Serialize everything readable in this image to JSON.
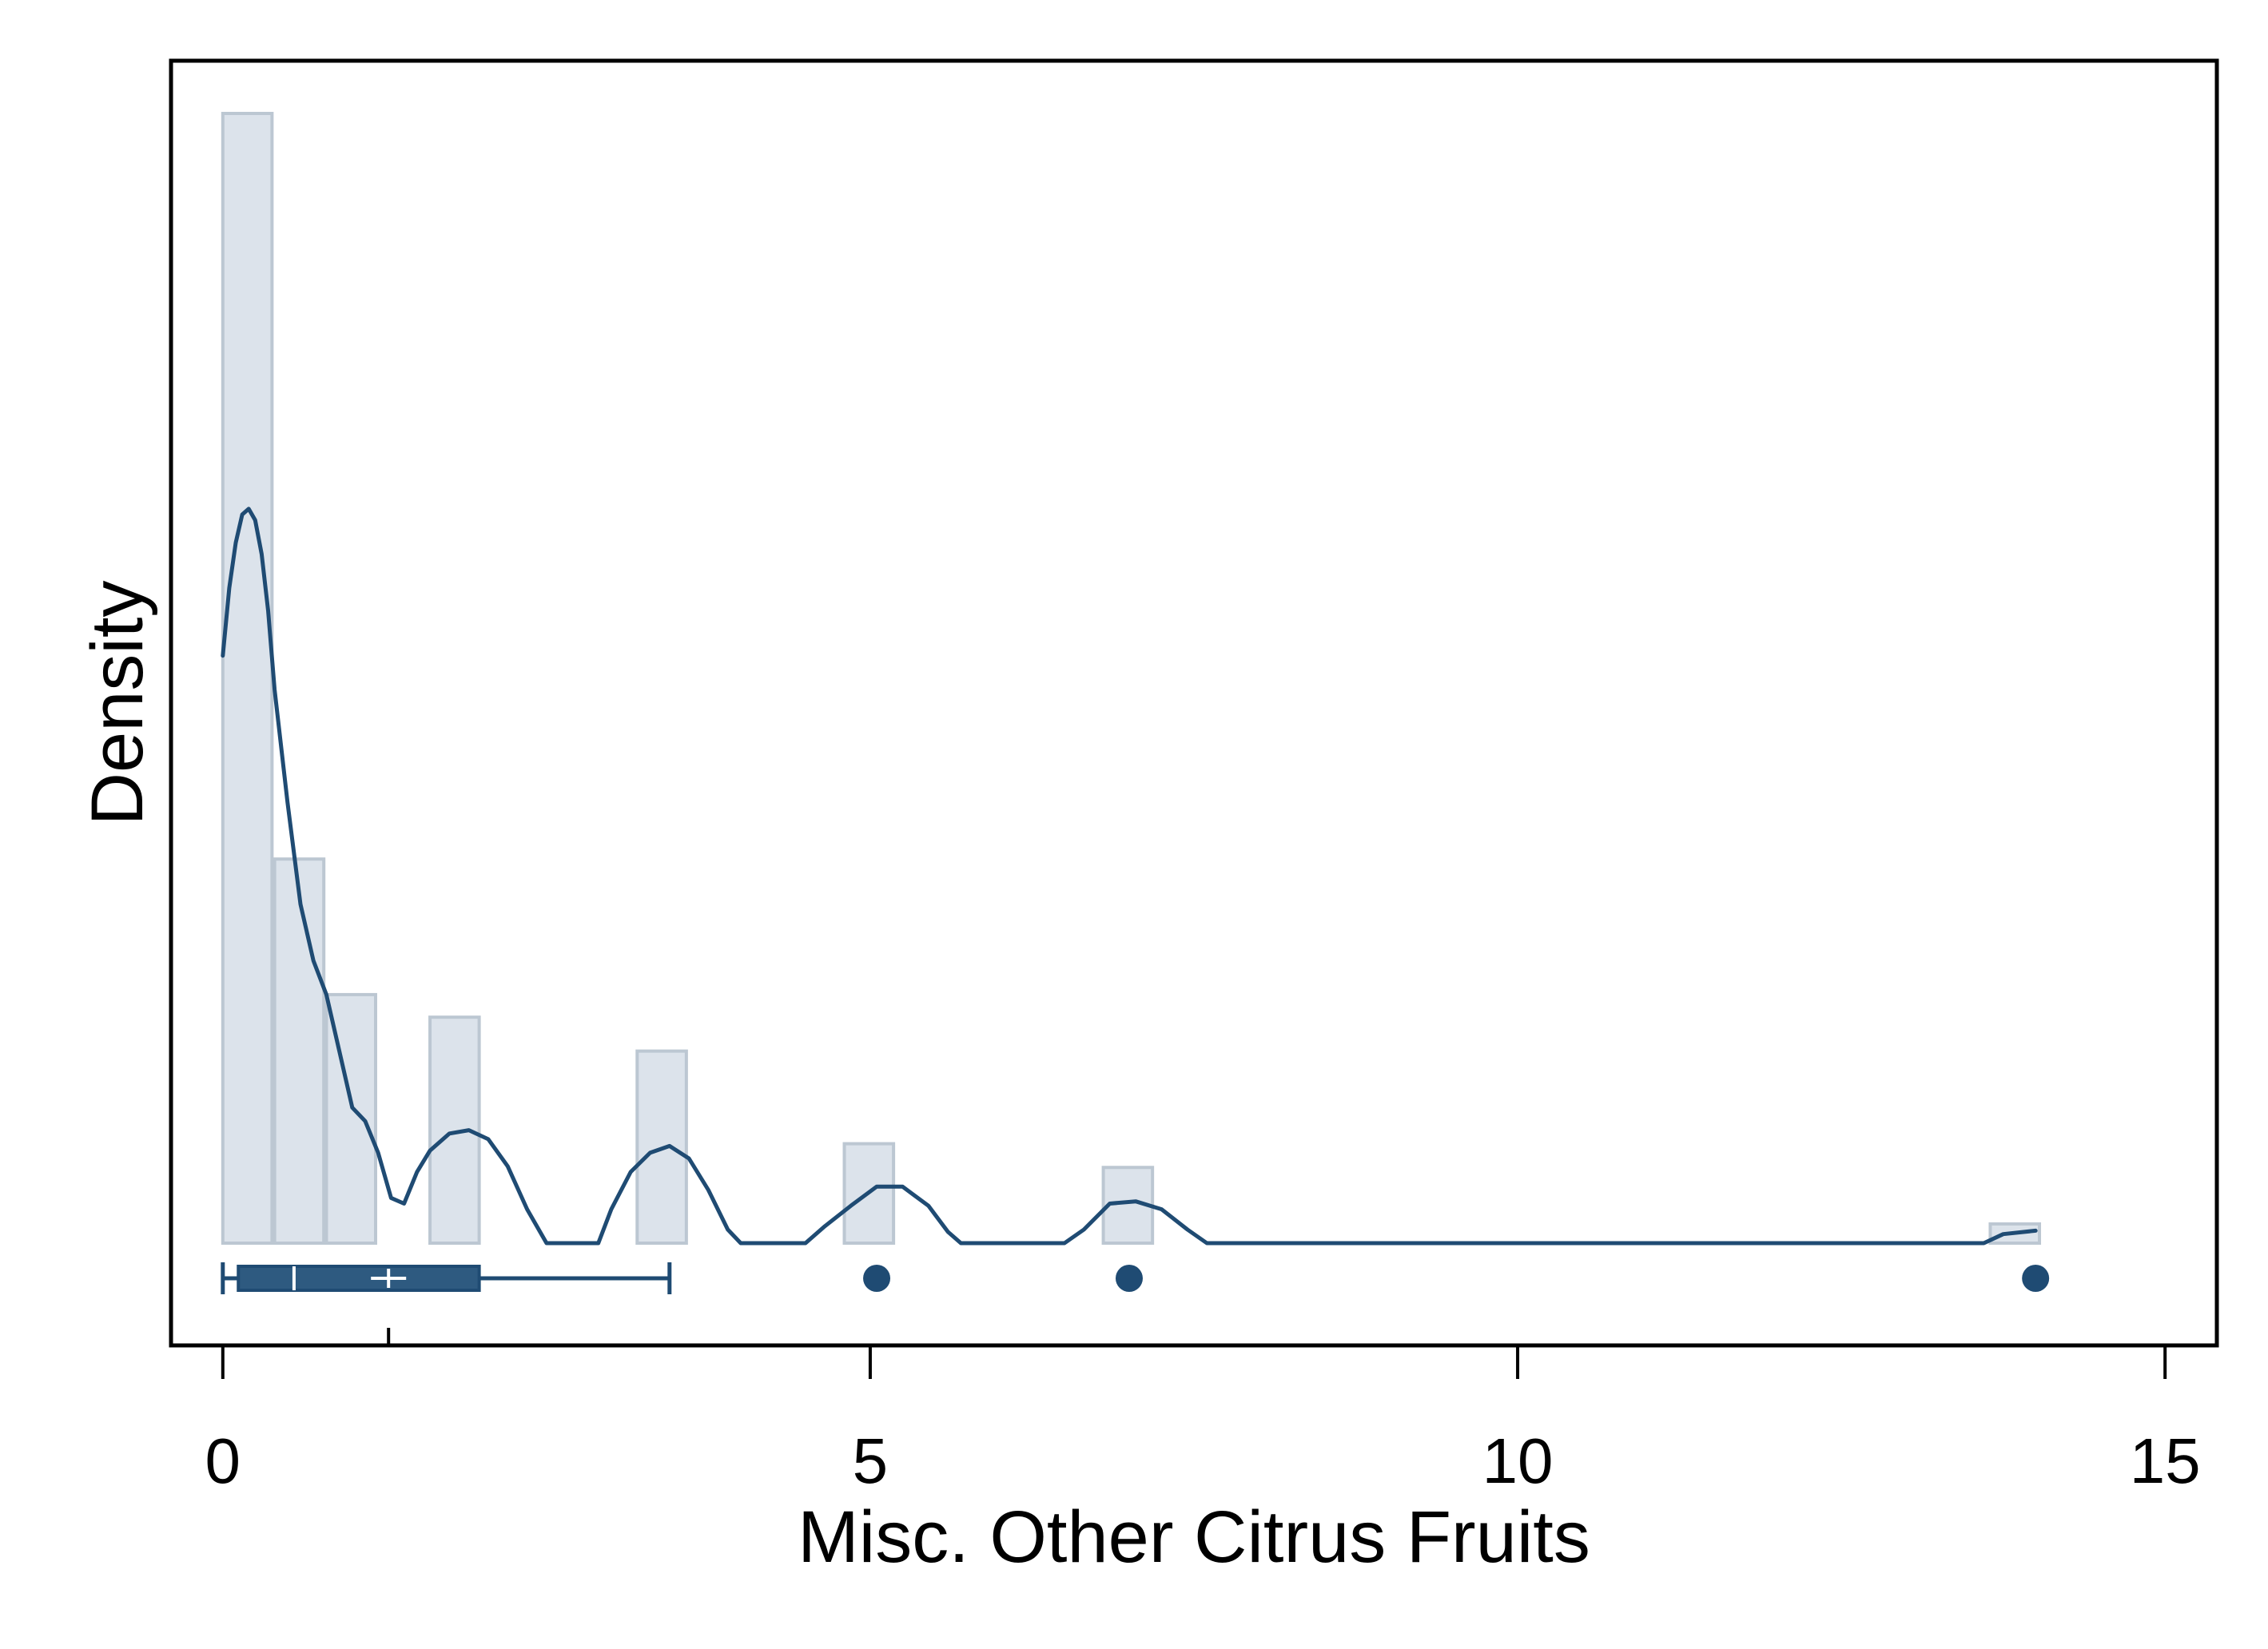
{
  "chart_data": {
    "type": "histogram",
    "title": "",
    "xlabel": "Misc. Other Citrus Fruits",
    "ylabel": "Density",
    "xlim": [
      -0.4,
      15.4
    ],
    "x_ticks": [
      0,
      5,
      10,
      15
    ],
    "x_tick_labels": [
      "0",
      "5",
      "10",
      "15"
    ],
    "y_ticks_shown": false,
    "grid": false,
    "histogram": {
      "bin_width": 0.38,
      "bins": [
        {
          "start": 0.0,
          "end": 0.38,
          "density": 1.0
        },
        {
          "start": 0.4,
          "end": 0.78,
          "density": 0.34
        },
        {
          "start": 0.8,
          "end": 1.18,
          "density": 0.22
        },
        {
          "start": 1.6,
          "end": 1.98,
          "density": 0.2
        },
        {
          "start": 3.2,
          "end": 3.58,
          "density": 0.17
        },
        {
          "start": 4.8,
          "end": 5.18,
          "density": 0.088
        },
        {
          "start": 6.8,
          "end": 7.18,
          "density": 0.067
        },
        {
          "start": 13.65,
          "end": 14.03,
          "density": 0.017
        }
      ]
    },
    "density_curve": {
      "x": [
        0.0,
        0.05,
        0.1,
        0.15,
        0.2,
        0.25,
        0.3,
        0.35,
        0.4,
        0.5,
        0.6,
        0.7,
        0.8,
        0.9,
        1.0,
        1.1,
        1.2,
        1.3,
        1.4,
        1.5,
        1.6,
        1.75,
        1.9,
        2.05,
        2.2,
        2.35,
        2.5,
        2.6,
        2.9,
        3.0,
        3.15,
        3.3,
        3.45,
        3.6,
        3.75,
        3.9,
        4.0,
        4.1,
        4.5,
        4.65,
        4.85,
        5.05,
        5.25,
        5.45,
        5.6,
        5.7,
        6.5,
        6.65,
        6.85,
        7.05,
        7.25,
        7.45,
        7.6,
        13.6,
        13.75,
        14.0
      ],
      "y": [
        0.52,
        0.58,
        0.62,
        0.645,
        0.65,
        0.64,
        0.61,
        0.56,
        0.49,
        0.39,
        0.3,
        0.25,
        0.22,
        0.17,
        0.12,
        0.108,
        0.08,
        0.04,
        0.035,
        0.063,
        0.082,
        0.097,
        0.1,
        0.092,
        0.068,
        0.03,
        0.0,
        0.0,
        0.0,
        0.03,
        0.063,
        0.08,
        0.086,
        0.075,
        0.047,
        0.012,
        0.0,
        0.0,
        0.0,
        0.015,
        0.033,
        0.05,
        0.05,
        0.033,
        0.01,
        0.0,
        0.0,
        0.012,
        0.035,
        0.037,
        0.03,
        0.012,
        0.0,
        0.0,
        0.008,
        0.011
      ]
    },
    "boxplot": {
      "whisker_low": 0.0,
      "q1": 0.12,
      "median": 0.55,
      "mean": 1.28,
      "q3": 1.98,
      "whisker_high": 3.45,
      "outliers": [
        5.05,
        7.0,
        14.0
      ]
    },
    "colors": {
      "bar_fill": "#dce3eb",
      "bar_stroke": "#bcc7d2",
      "curve": "#1f4b73",
      "box": "#2e5a80",
      "box_stroke": "#1f4b73",
      "marker": "#1f4b73",
      "axis": "#000000"
    }
  }
}
